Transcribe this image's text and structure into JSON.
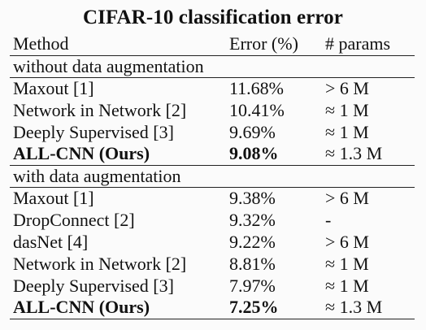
{
  "table": {
    "title": "CIFAR-10 classification error",
    "headers": [
      "Method",
      "Error (%)",
      "# params"
    ],
    "sections": [
      {
        "label": "without data augmentation",
        "rows": [
          {
            "method": "Maxout [1]",
            "error": "11.68%",
            "params": "> 6 M",
            "bold": false
          },
          {
            "method": "Network in Network [2]",
            "error": "10.41%",
            "params": "≈ 1 M",
            "bold": false
          },
          {
            "method": "Deeply Supervised [3]",
            "error": "9.69%",
            "params": "≈ 1 M",
            "bold": false
          },
          {
            "method": "ALL-CNN (Ours)",
            "error": "9.08%",
            "params": "≈ 1.3 M",
            "bold": true
          }
        ]
      },
      {
        "label": "with data augmentation",
        "rows": [
          {
            "method": "Maxout [1]",
            "error": "9.38%",
            "params": "> 6 M",
            "bold": false
          },
          {
            "method": "DropConnect [2]",
            "error": "9.32%",
            "params": "-",
            "bold": false
          },
          {
            "method": "dasNet [4]",
            "error": "9.22%",
            "params": "> 6 M",
            "bold": false
          },
          {
            "method": "Network in Network [2]",
            "error": "8.81%",
            "params": "≈ 1 M",
            "bold": false
          },
          {
            "method": "Deeply Supervised [3]",
            "error": "7.97%",
            "params": "≈ 1 M",
            "bold": false
          },
          {
            "method": "ALL-CNN (Ours)",
            "error": "7.25%",
            "params": "≈ 1.3 M",
            "bold": true
          }
        ]
      }
    ]
  }
}
